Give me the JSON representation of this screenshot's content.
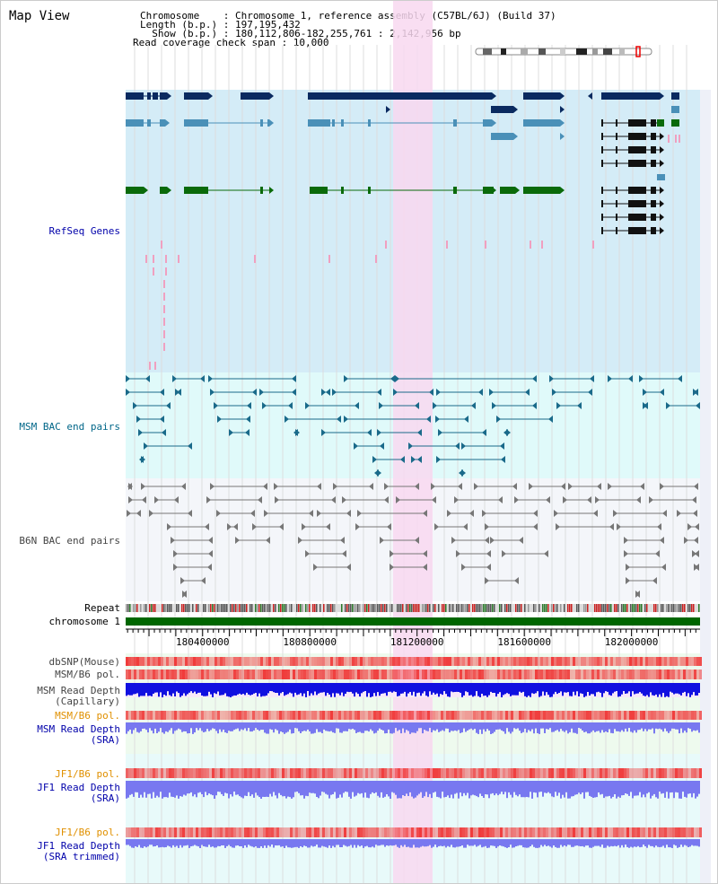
{
  "title": "Map View",
  "info": {
    "chromosome": "Chromosome    : Chromosome 1, reference assembly (C57BL/6J) (Build 37)",
    "length": "Length (b.p.) : 197,195,432",
    "show": "  Show (b.p.) : 180,112,806-182,255,761 : 2,142,956 bp",
    "coverage": "Read coverage check span : 10,000"
  },
  "tracks": {
    "refseq": "RefSeq Genes",
    "msm_bac": "MSM BAC end pairs",
    "b6n_bac": "B6N BAC end pairs",
    "repeat": "Repeat",
    "chromosome": "chromosome 1",
    "dbsnp": "dbSNP(Mouse)",
    "msm_pol": "MSM/B6 pol.",
    "msm_depth_cap_1": "MSM Read Depth",
    "msm_depth_cap_2": "(Capillary)",
    "msm_pol_2": "MSM/B6 pol.",
    "msm_depth_sra_1": "MSM Read Depth",
    "msm_depth_sra_2": "(SRA)",
    "jf1_pol": "JF1/B6 pol.",
    "jf1_depth_1": "JF1 Read Depth",
    "jf1_depth_2": "(SRA)",
    "jf1_pol_2": "JF1/B6 pol.",
    "jf1_trim_1": "JF1 Read Depth",
    "jf1_trim_2": "(SRA trimmed)"
  },
  "axis": {
    "ticks": [
      "180400000",
      "180800000",
      "181200000",
      "181600000",
      "182000000"
    ],
    "tick_values": [
      180400000,
      180800000,
      181200000,
      181600000,
      182000000
    ],
    "range": [
      180112806,
      182255761
    ]
  },
  "colors": {
    "refseq_bg": "#d4ecf7",
    "bac_bg": "#e0fafa",
    "b6n_bg": "#f4f6fa",
    "highlight": "#f8d8f0",
    "gene_dark": "#0a2a60",
    "gene_mid": "#4a90b8",
    "gene_green": "#0a6a0a",
    "chrom": "#006600",
    "msm_bac": "#1a6a8a",
    "b6n_bac": "#666666",
    "depth_blue": "#1010e0",
    "depth_violet": "#7878f0",
    "snp_red": "#f03030",
    "label_blue": "#0000aa",
    "label_orange": "#e09000",
    "label_teal": "#006688"
  }
}
